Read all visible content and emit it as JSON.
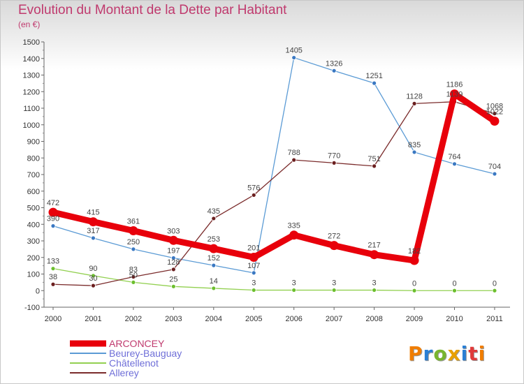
{
  "title": "Evolution du Montant de la Dette par Habitant",
  "subtitle": "(en €)",
  "logo": {
    "text": "Proxiti",
    "colors": [
      "#f07d00",
      "#2a7fd4",
      "#7ab52e",
      "#e8a000",
      "#2a7fd4",
      "#e03a3a",
      "#f07d00"
    ]
  },
  "chart_data": {
    "type": "line",
    "title": "Evolution du Montant de la Dette par Habitant",
    "subtitle": "(en €)",
    "x": [
      "2000",
      "2001",
      "2002",
      "2003",
      "2004",
      "2005",
      "2006",
      "2007",
      "2008",
      "2009",
      "2010",
      "2011"
    ],
    "ylim": [
      -100,
      1500
    ],
    "yticks": [
      -100,
      0,
      100,
      200,
      300,
      400,
      500,
      600,
      700,
      800,
      900,
      1000,
      1100,
      1200,
      1300,
      1400,
      1500
    ],
    "grid": false,
    "legend_position": "bottom-left",
    "series": [
      {
        "name": "ARCONCEY",
        "color": "#e8000b",
        "emphasis": true,
        "values": [
          472,
          415,
          361,
          303,
          253,
          201,
          335,
          272,
          217,
          182,
          1186,
          1022
        ]
      },
      {
        "name": "Beurey-Bauguay",
        "color": "#5b9bd5",
        "marker_color": "#3a78c2",
        "values": [
          390,
          317,
          250,
          197,
          152,
          107,
          1405,
          1326,
          1251,
          835,
          764,
          704
        ]
      },
      {
        "name": "Châtellenot",
        "color": "#92d050",
        "marker_color": "#6cbf2e",
        "values": [
          133,
          90,
          50,
          25,
          14,
          3,
          3,
          3,
          3,
          0,
          0,
          0
        ]
      },
      {
        "name": "Allerey",
        "color": "#7b2c2c",
        "marker_color": "#6b1f1f",
        "values": [
          38,
          30,
          83,
          128,
          435,
          576,
          788,
          770,
          751,
          1128,
          1139,
          1068
        ]
      }
    ]
  }
}
